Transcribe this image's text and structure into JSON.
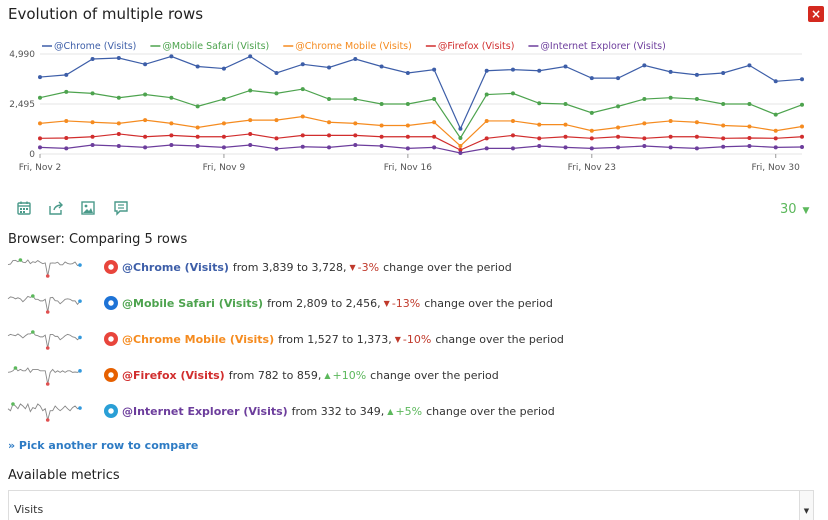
{
  "header": {
    "title": "Evolution of multiple rows",
    "close_label": "×"
  },
  "chart_data": {
    "type": "line",
    "x": [
      "Fri, Nov 2",
      "Sat, Nov 3",
      "Sun, Nov 4",
      "Mon, Nov 5",
      "Tue, Nov 6",
      "Wed, Nov 7",
      "Thu, Nov 8",
      "Fri, Nov 9",
      "Sat, Nov 10",
      "Sun, Nov 11",
      "Mon, Nov 12",
      "Tue, Nov 13",
      "Wed, Nov 14",
      "Thu, Nov 15",
      "Fri, Nov 16",
      "Sat, Nov 17",
      "Sun, Nov 18",
      "Mon, Nov 19",
      "Tue, Nov 20",
      "Wed, Nov 21",
      "Thu, Nov 22",
      "Fri, Nov 23",
      "Sat, Nov 24",
      "Sun, Nov 25",
      "Mon, Nov 26",
      "Tue, Nov 27",
      "Wed, Nov 28",
      "Thu, Nov 29",
      "Fri, Nov 30",
      "Sat, Dec 1"
    ],
    "x_tick_labels": [
      "Fri, Nov 2",
      "Fri, Nov 9",
      "Fri, Nov 16",
      "Fri, Nov 23",
      "Fri, Nov 30"
    ],
    "x_tick_indices": [
      0,
      7,
      14,
      21,
      28
    ],
    "y_ticks": [
      "0",
      "2,495",
      "4,990"
    ],
    "ylim": [
      0,
      4990
    ],
    "grid": true,
    "legend_position": "top",
    "series": [
      {
        "name": "@Chrome (Visits)",
        "color": "#3d5ea8",
        "values": [
          3839,
          3948,
          4740,
          4790,
          4476,
          4869,
          4367,
          4263,
          4869,
          4043,
          4476,
          4317,
          4740,
          4367,
          4043,
          4211,
          1260,
          4155,
          4211,
          4155,
          4367,
          3785,
          3785,
          4422,
          4099,
          3948,
          4043,
          4422,
          3628,
          3728
        ]
      },
      {
        "name": "@Mobile Safari (Visits)",
        "color": "#4da34e",
        "values": [
          2809,
          3100,
          3024,
          2809,
          2967,
          2809,
          2376,
          2742,
          3170,
          3024,
          3240,
          2742,
          2742,
          2495,
          2495,
          2742,
          800,
          2967,
          3024,
          2532,
          2495,
          2054,
          2376,
          2742,
          2809,
          2742,
          2495,
          2495,
          1967,
          2456
        ]
      },
      {
        "name": "@Chrome Mobile (Visits)",
        "color": "#f58b1f",
        "values": [
          1527,
          1649,
          1583,
          1527,
          1689,
          1527,
          1323,
          1527,
          1689,
          1689,
          1870,
          1583,
          1527,
          1423,
          1423,
          1583,
          400,
          1649,
          1649,
          1467,
          1467,
          1160,
          1323,
          1527,
          1649,
          1583,
          1423,
          1373,
          1160,
          1373
        ]
      },
      {
        "name": "@Firefox (Visits)",
        "color": "#d12d2d",
        "values": [
          782,
          800,
          859,
          1000,
          859,
          930,
          859,
          859,
          1000,
          782,
          930,
          930,
          930,
          859,
          859,
          859,
          200,
          782,
          930,
          782,
          859,
          782,
          859,
          782,
          859,
          859,
          782,
          800,
          782,
          859
        ]
      },
      {
        "name": "@Internet Explorer (Visits)",
        "color": "#6c3d9c",
        "values": [
          332,
          282,
          450,
          400,
          332,
          450,
          400,
          332,
          450,
          260,
          360,
          332,
          450,
          400,
          282,
          332,
          50,
          282,
          282,
          400,
          332,
          282,
          332,
          400,
          332,
          282,
          360,
          400,
          332,
          349
        ]
      }
    ]
  },
  "toolbar": {
    "icons": [
      "calendar-icon",
      "export-icon",
      "image-icon",
      "annotation-icon"
    ],
    "period_value": "30",
    "period_arrow": "▼"
  },
  "comparison": {
    "title": "Browser: Comparing 5 rows",
    "rows": [
      {
        "label": "@Chrome (Visits)",
        "color": "#3d5ea8",
        "icon_color": "#e8453c",
        "from_text": "from 3,839 to 3,728,",
        "direction": "down",
        "change": "-3%",
        "suffix": "change over the period"
      },
      {
        "label": "@Mobile Safari (Visits)",
        "color": "#4da34e",
        "icon_color": "#1e73d6",
        "from_text": "from 2,809 to 2,456,",
        "direction": "down",
        "change": "-13%",
        "suffix": "change over the period"
      },
      {
        "label": "@Chrome Mobile (Visits)",
        "color": "#f58b1f",
        "icon_color": "#e8453c",
        "from_text": "from 1,527 to 1,373,",
        "direction": "down",
        "change": "-10%",
        "suffix": "change over the period"
      },
      {
        "label": "@Firefox (Visits)",
        "color": "#d12d2d",
        "icon_color": "#e66000",
        "from_text": "from 782 to 859,",
        "direction": "up",
        "change": "+10%",
        "suffix": "change over the period"
      },
      {
        "label": "@Internet Explorer (Visits)",
        "color": "#6c3d9c",
        "icon_color": "#2a9fd6",
        "from_text": "from 332 to 349,",
        "direction": "up",
        "change": "+5%",
        "suffix": "change over the period"
      }
    ],
    "pick_link": "» Pick another row to compare"
  },
  "metrics": {
    "title": "Available metrics",
    "selected": "Visits",
    "caret": "▼"
  }
}
